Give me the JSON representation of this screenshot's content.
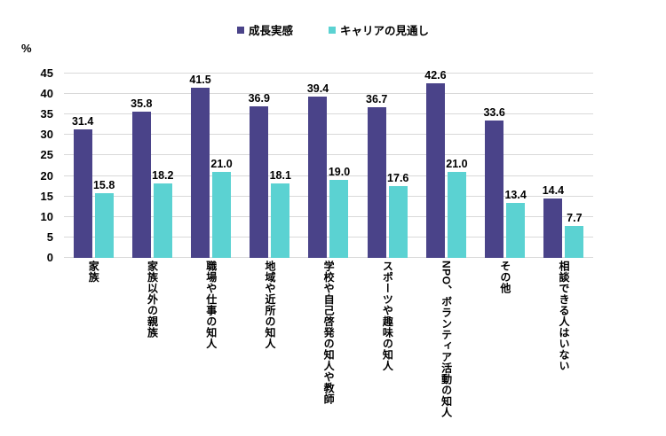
{
  "chart_data": {
    "type": "bar",
    "title": "",
    "unit_label": "%",
    "categories": [
      "家族",
      "家族以外の親族",
      "職場や仕事の知人",
      "地域や近所の知人",
      "学校や自己啓発の知人や教師",
      "スポーツや趣味の知人",
      "NPO、ボランティア活動の知人",
      "その他",
      "相談できる人はいない"
    ],
    "series": [
      {
        "name": "成長実感",
        "color": "#4a4389",
        "values": [
          31.4,
          35.8,
          41.5,
          36.9,
          39.4,
          36.7,
          42.6,
          33.6,
          14.4
        ]
      },
      {
        "name": "キャリアの見通し",
        "color": "#5bd2d2",
        "values": [
          15.8,
          18.2,
          21.0,
          18.1,
          19.0,
          17.6,
          21.0,
          13.4,
          7.7
        ]
      }
    ],
    "ylim": [
      0,
      45
    ],
    "ytick_step": 5,
    "yticks": [
      0,
      5,
      10,
      15,
      20,
      25,
      30,
      35,
      40,
      45
    ],
    "grid": true,
    "legend_position": "top",
    "value_labels": true
  },
  "colors": {
    "gridline": "#d9d9d9",
    "text": "#000000",
    "background": "#ffffff"
  }
}
